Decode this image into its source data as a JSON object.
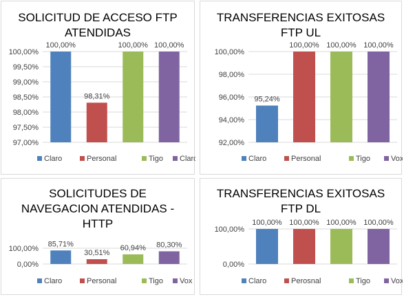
{
  "chart_data": [
    {
      "type": "bar",
      "title_lines": [
        "SOLICITUD DE ACCESO FTP",
        "ATENDIDAS"
      ],
      "categories": [
        "Claro",
        "Personal",
        "Tigo",
        "Claro"
      ],
      "values": [
        100.0,
        98.31,
        100.0,
        100.0
      ],
      "value_labels": [
        "100,00%",
        "98,31%",
        "100,00%",
        "100,00%"
      ],
      "ylim": [
        97.0,
        100.0
      ],
      "y_ticks": [
        97.0,
        97.5,
        98.0,
        98.5,
        99.0,
        99.5,
        100.0
      ],
      "y_tick_labels": [
        "97,00%",
        "97,50%",
        "98,00%",
        "98,50%",
        "99,00%",
        "99,50%",
        "100,00%"
      ],
      "legend": [
        "Claro",
        "Personal",
        "Tigo",
        "Claro"
      ],
      "legend_position": "bottom",
      "grid": true,
      "colors": [
        "#4f81bd",
        "#c0504d",
        "#9bbb59",
        "#8064a2"
      ]
    },
    {
      "type": "bar",
      "title_lines": [
        "TRANSFERENCIAS EXITOSAS",
        "FTP UL"
      ],
      "categories": [
        "Claro",
        "Personal",
        "Tigo",
        "Vox"
      ],
      "values": [
        95.24,
        100.0,
        100.0,
        100.0
      ],
      "value_labels": [
        "95,24%",
        "100,00%",
        "100,00%",
        "100,00%"
      ],
      "ylim": [
        92.0,
        100.0
      ],
      "y_ticks": [
        92.0,
        94.0,
        96.0,
        98.0,
        100.0
      ],
      "y_tick_labels": [
        "92,00%",
        "94,00%",
        "96,00%",
        "98,00%",
        "100,00%"
      ],
      "legend": [
        "Claro",
        "Personal",
        "Tigo",
        "Vox"
      ],
      "legend_position": "bottom",
      "grid": true,
      "colors": [
        "#4f81bd",
        "#c0504d",
        "#9bbb59",
        "#8064a2"
      ]
    },
    {
      "type": "bar",
      "title_lines": [
        "SOLICITUDES DE",
        "NAVEGACION ATENDIDAS -",
        "HTTP"
      ],
      "categories": [
        "Claro",
        "Personal",
        "Tigo",
        "Vox"
      ],
      "values": [
        85.71,
        30.51,
        60.94,
        80.3
      ],
      "value_labels": [
        "85,71%",
        "30,51%",
        "60,94%",
        "80,30%"
      ],
      "ylim": [
        0.0,
        100.0
      ],
      "y_ticks": [
        0.0,
        100.0
      ],
      "y_tick_labels": [
        "0,00%",
        "100,00%"
      ],
      "legend": [
        "Claro",
        "Personal",
        "Tigo",
        "Vox"
      ],
      "legend_position": "bottom",
      "grid": true,
      "colors": [
        "#4f81bd",
        "#c0504d",
        "#9bbb59",
        "#8064a2"
      ]
    },
    {
      "type": "bar",
      "title_lines": [
        "TRANSFERENCIAS EXITOSAS",
        "FTP DL"
      ],
      "categories": [
        "Claro",
        "Perosnal",
        "Tigo",
        "Vox"
      ],
      "values": [
        100.0,
        100.0,
        100.0,
        100.0
      ],
      "value_labels": [
        "100,00%",
        "100,00%",
        "100,00%",
        "100,00%"
      ],
      "ylim": [
        0.0,
        100.0
      ],
      "y_ticks": [
        0.0,
        100.0
      ],
      "y_tick_labels": [
        "0,00%",
        "100,00%"
      ],
      "legend": [
        "Claro",
        "Perosnal",
        "Tigo",
        "Vox"
      ],
      "legend_position": "bottom",
      "grid": true,
      "colors": [
        "#4f81bd",
        "#c0504d",
        "#9bbb59",
        "#8064a2"
      ]
    }
  ]
}
